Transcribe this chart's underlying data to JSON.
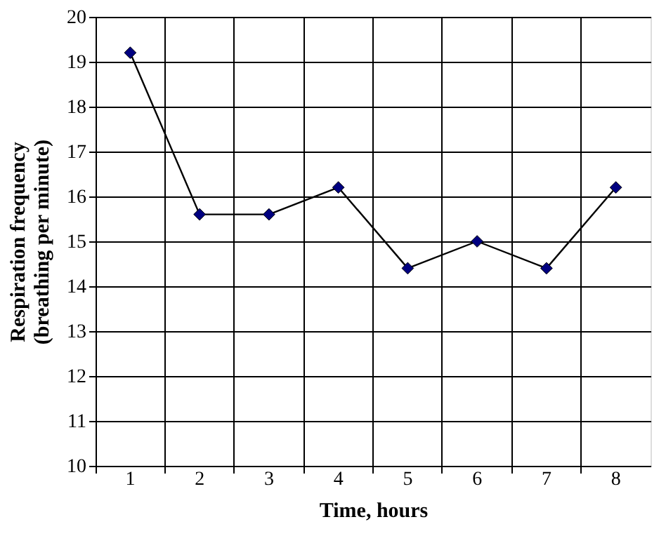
{
  "chart_data": {
    "type": "line",
    "xlabel": "Time, hours",
    "ylabel": "Respiration frequency (breathing per minute)",
    "categories": [
      "1",
      "2",
      "3",
      "4",
      "5",
      "6",
      "7",
      "8"
    ],
    "series": [
      {
        "color": "#000080",
        "values": [
          19.2,
          15.6,
          15.6,
          16.2,
          14.4,
          15.0,
          14.4,
          16.2
        ]
      }
    ],
    "ylim": [
      10,
      20
    ],
    "yticks": [
      10,
      11,
      12,
      13,
      14,
      15,
      16,
      17,
      18,
      19,
      20
    ],
    "grid": true,
    "marker": "diamond",
    "line_style": "solid",
    "legend": false
  }
}
